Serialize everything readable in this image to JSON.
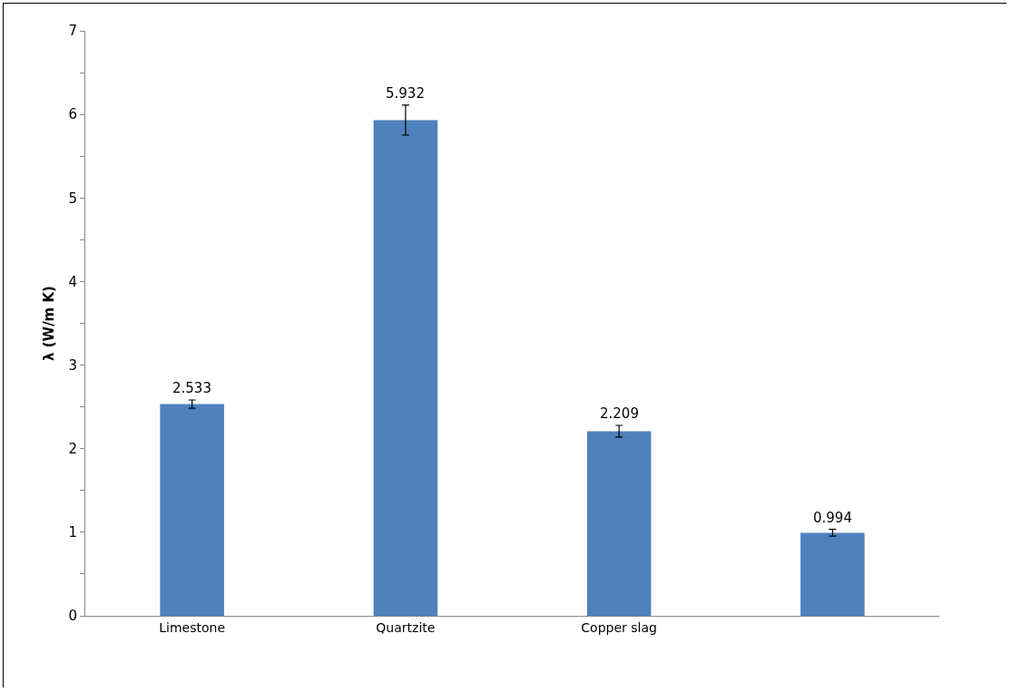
{
  "chart_data": {
    "type": "bar",
    "ylabel": "λ (W/m K)",
    "categories": [
      "Limestone",
      "Quartzite",
      "Copper slag",
      null
    ],
    "values": [
      2.533,
      5.932,
      2.209,
      0.994
    ],
    "errors": [
      0.05,
      0.18,
      0.07,
      0.04
    ],
    "color": "#4f81bd",
    "data_labels": true,
    "ylim": [
      0,
      7
    ],
    "yticks": [
      0,
      {
        "value": 0.5,
        "label": null
      },
      1,
      {
        "value": 1.5,
        "label": null
      },
      2,
      {
        "value": 2.5,
        "label": null
      },
      3,
      {
        "value": 3.5,
        "label": null
      },
      4,
      {
        "value": 4.5,
        "label": null
      },
      5,
      {
        "value": 5.5,
        "label": null
      },
      6,
      {
        "value": 6.5,
        "label": null
      },
      7
    ],
    "grid": false
  }
}
